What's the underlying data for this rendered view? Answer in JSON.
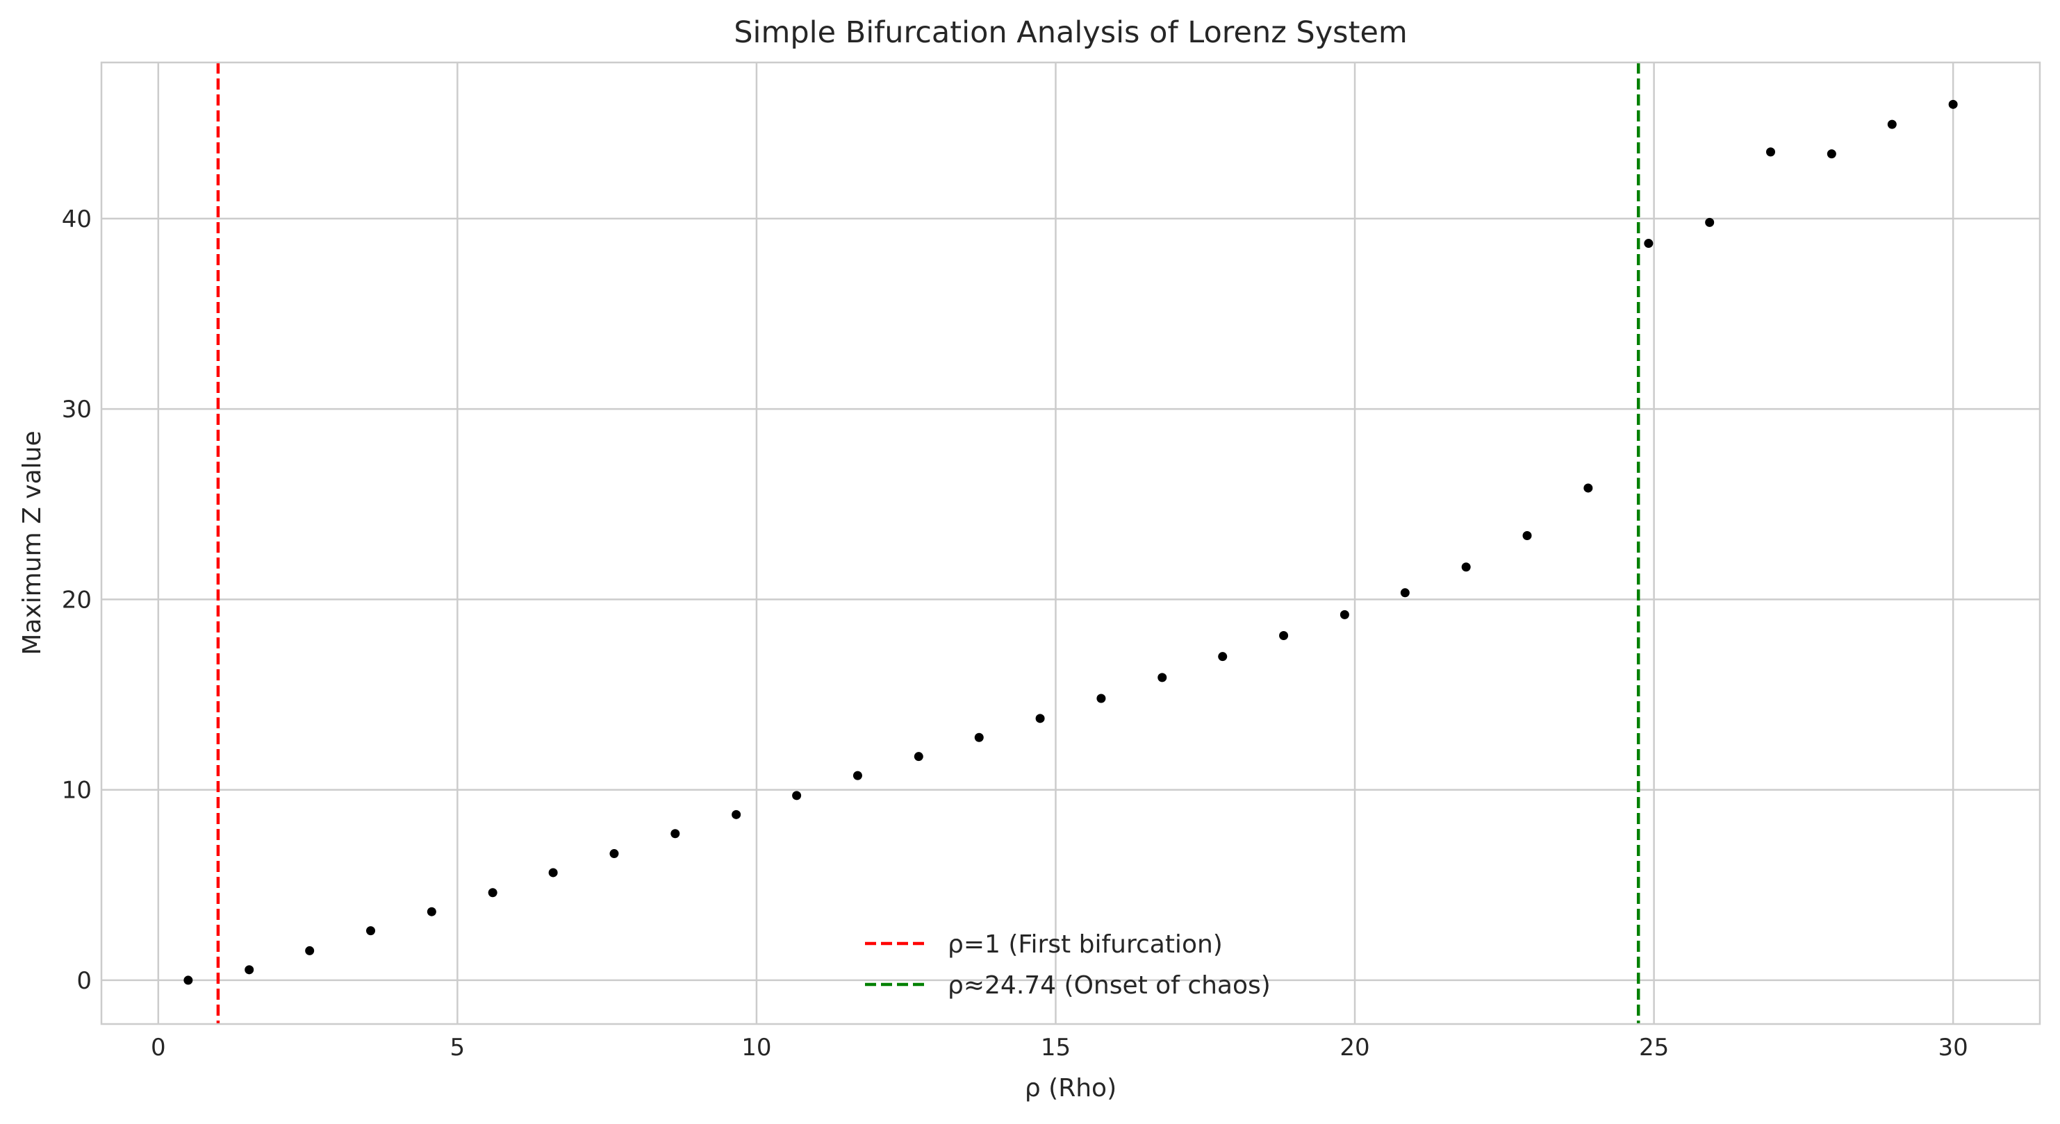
{
  "chart_data": {
    "type": "scatter",
    "title": "Simple Bifurcation Analysis of Lorenz System",
    "xlabel": "ρ (Rho)",
    "ylabel": "Maximum Z value",
    "xlim": [
      -0.95,
      31.45
    ],
    "ylim": [
      -2.3,
      48.2
    ],
    "xticks": [
      0,
      5,
      10,
      15,
      20,
      25,
      30
    ],
    "yticks": [
      0,
      10,
      20,
      30,
      40
    ],
    "grid": true,
    "legend_position": "lower center",
    "series": [
      {
        "color": "#000000",
        "points": [
          {
            "x": 0.5,
            "y": 0.0
          },
          {
            "x": 1.52,
            "y": 0.55
          },
          {
            "x": 2.53,
            "y": 1.55
          },
          {
            "x": 3.55,
            "y": 2.6
          },
          {
            "x": 4.57,
            "y": 3.6
          },
          {
            "x": 5.59,
            "y": 4.6
          },
          {
            "x": 6.6,
            "y": 5.65
          },
          {
            "x": 7.62,
            "y": 6.65
          },
          {
            "x": 8.64,
            "y": 7.7
          },
          {
            "x": 9.66,
            "y": 8.7
          },
          {
            "x": 10.67,
            "y": 9.7
          },
          {
            "x": 11.69,
            "y": 10.75
          },
          {
            "x": 12.71,
            "y": 11.75
          },
          {
            "x": 13.72,
            "y": 12.75
          },
          {
            "x": 14.74,
            "y": 13.75
          },
          {
            "x": 15.76,
            "y": 14.8
          },
          {
            "x": 16.78,
            "y": 15.9
          },
          {
            "x": 17.79,
            "y": 17.0
          },
          {
            "x": 18.81,
            "y": 18.1
          },
          {
            "x": 19.83,
            "y": 19.2
          },
          {
            "x": 20.84,
            "y": 20.35
          },
          {
            "x": 21.86,
            "y": 21.7
          },
          {
            "x": 22.88,
            "y": 23.35
          },
          {
            "x": 23.9,
            "y": 25.85
          },
          {
            "x": 24.91,
            "y": 38.7
          },
          {
            "x": 25.93,
            "y": 39.8
          },
          {
            "x": 26.95,
            "y": 43.5
          },
          {
            "x": 27.97,
            "y": 43.4
          },
          {
            "x": 28.98,
            "y": 44.95
          },
          {
            "x": 30.0,
            "y": 46.0
          }
        ]
      }
    ],
    "reference_lines": [
      {
        "x": 1,
        "label": "ρ=1 (First bifurcation)",
        "color": "#ff0000",
        "style": "dashed"
      },
      {
        "x": 24.74,
        "label": "ρ≈24.74 (Onset of chaos)",
        "color": "#008000",
        "style": "dashed"
      }
    ],
    "colors": {
      "grid": "#cccccc",
      "frame": "#cccccc",
      "text": "#262626"
    }
  }
}
